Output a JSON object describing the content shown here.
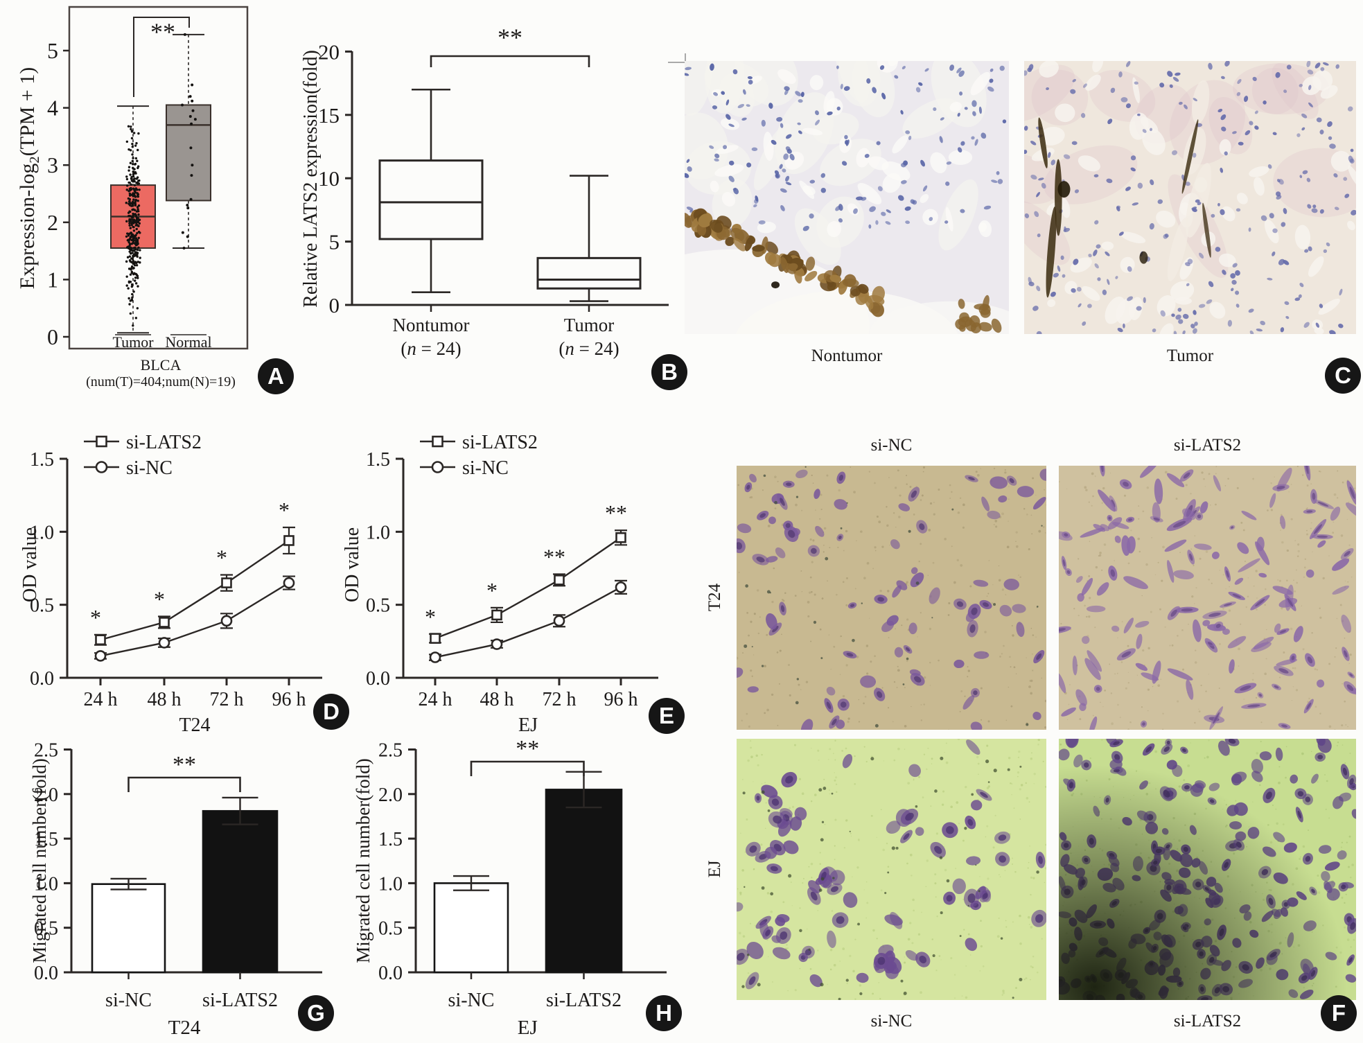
{
  "badges": {
    "a": "A",
    "b": "B",
    "c": "C",
    "d": "D",
    "e": "E",
    "f": "F",
    "g": "G",
    "h": "H"
  },
  "chart_data": {
    "A": {
      "type": "box-scatter",
      "ylabel": "Expression-log2(TPM + 1)",
      "ylabel_parts": {
        "prefix": "Expression-log",
        "sub": "2",
        "suffix": "(TPM + 1)"
      },
      "yticks": [
        0,
        1,
        2,
        3,
        4,
        5
      ],
      "ylim": [
        0,
        5.6
      ],
      "categories": [
        "Tumor",
        "Normal"
      ],
      "significance": "**",
      "xlabel_lines": [
        "BLCA",
        "(num(T)=404;num(N)=19)"
      ],
      "box_colors": [
        "#ec6a62",
        "#9a9591"
      ],
      "boxes": [
        {
          "name": "Tumor",
          "fill": "#ec6a62",
          "min": 0.07,
          "q1": 1.55,
          "median": 2.1,
          "q3": 2.65,
          "max": 4.03,
          "n_points": 330
        },
        {
          "name": "Normal",
          "fill": "#9a9591",
          "min": 1.55,
          "q1": 2.38,
          "median": 3.7,
          "q3": 4.05,
          "max": 5.28,
          "points": [
            5.28,
            4.4,
            4.2,
            4.12,
            4.05,
            3.95,
            3.85,
            3.8,
            3.72,
            3.3,
            3.0,
            2.82,
            2.4,
            2.3,
            2.25,
            1.82,
            1.75,
            1.55
          ]
        }
      ]
    },
    "B": {
      "type": "box",
      "ylabel": "Relative LATS2 expression(fold)",
      "yticks": [
        0,
        5,
        10,
        15,
        20
      ],
      "ylim": [
        0,
        20
      ],
      "significance": "**",
      "categories": [
        {
          "label": "Nontumor",
          "sub": "(n = 24)"
        },
        {
          "label": "Tumor",
          "sub": "(n = 24)"
        }
      ],
      "boxes": [
        {
          "name": "Nontumor",
          "min": 1.0,
          "q1": 5.2,
          "median": 8.1,
          "q3": 11.4,
          "max": 17.0
        },
        {
          "name": "Tumor",
          "min": 0.3,
          "q1": 1.3,
          "median": 2.0,
          "q3": 3.7,
          "max": 10.2
        }
      ]
    },
    "D": {
      "type": "line",
      "ylabel": "OD value",
      "xlabel": "T24",
      "yticks": [
        "0.0",
        "0.5",
        "1.0",
        "1.5"
      ],
      "ylim": [
        0,
        1.5
      ],
      "x_categories": [
        "24 h",
        "48 h",
        "72 h",
        "96 h"
      ],
      "series": [
        {
          "name": "si-LATS2",
          "marker": "square",
          "values": [
            0.26,
            0.38,
            0.65,
            0.94
          ],
          "errors": [
            0.035,
            0.04,
            0.055,
            0.09
          ]
        },
        {
          "name": "si-NC",
          "marker": "circle",
          "values": [
            0.15,
            0.24,
            0.39,
            0.65
          ],
          "errors": [
            0.02,
            0.03,
            0.05,
            0.045
          ]
        }
      ],
      "stars": [
        "*",
        "*",
        "*",
        "*"
      ]
    },
    "E": {
      "type": "line",
      "ylabel": "OD value",
      "xlabel": "EJ",
      "yticks": [
        "0.0",
        "0.5",
        "1.0",
        "1.5"
      ],
      "ylim": [
        0,
        1.5
      ],
      "x_categories": [
        "24 h",
        "48 h",
        "72 h",
        "96 h"
      ],
      "series": [
        {
          "name": "si-LATS2",
          "marker": "square",
          "values": [
            0.27,
            0.43,
            0.67,
            0.96
          ],
          "errors": [
            0.03,
            0.05,
            0.04,
            0.05
          ]
        },
        {
          "name": "si-NC",
          "marker": "circle",
          "values": [
            0.14,
            0.23,
            0.39,
            0.62
          ],
          "errors": [
            0.02,
            0.025,
            0.04,
            0.045
          ]
        }
      ],
      "stars": [
        "*",
        "*",
        "**",
        "**"
      ]
    },
    "G": {
      "type": "bar",
      "ylabel": "Migrated cell number(fold)",
      "xlabel": "T24",
      "yticks": [
        "0.0",
        "0.5",
        "1.0",
        "1.5",
        "2.0",
        "2.5"
      ],
      "ylim": [
        0,
        2.5
      ],
      "categories": [
        "si-NC",
        "si-LATS2"
      ],
      "values": [
        0.99,
        1.81
      ],
      "errors": [
        0.06,
        0.15
      ],
      "bar_fills": [
        "#ffffff",
        "#121212"
      ],
      "significance": "**"
    },
    "H": {
      "type": "bar",
      "ylabel": "Migrated cell number(fold)",
      "xlabel": "EJ",
      "yticks": [
        "0.0",
        "0.5",
        "1.0",
        "1.5",
        "2.0",
        "2.5"
      ],
      "ylim": [
        0,
        2.5
      ],
      "categories": [
        "si-NC",
        "si-LATS2"
      ],
      "values": [
        1.0,
        2.05
      ],
      "errors": [
        0.08,
        0.2
      ],
      "bar_fills": [
        "#ffffff",
        "#121212"
      ],
      "significance": "**"
    }
  },
  "micrographs": {
    "c_left_label": "Nontumor",
    "c_right_label": "Tumor",
    "f_col_labels": [
      "si-NC",
      "si-LATS2"
    ],
    "f_row_labels": [
      "T24",
      "EJ"
    ],
    "f_bottom_labels": [
      "si-NC",
      "si-LATS2"
    ],
    "palettes": {
      "ihc_nontumor": {
        "base": "#ece9ee",
        "base2": "#f5f3ef",
        "nuclei": "#5c68a8",
        "stain": "#8a6630",
        "stain_dark": "#6b4b1e",
        "white": "#f9f8f5"
      },
      "ihc_tumor": {
        "base": "#efe7dd",
        "nuclei": "#666cab",
        "pink": "#dfc3c9",
        "streak": "#3a2a0e",
        "vacuole": "#f7f3ee"
      },
      "t24_nc": {
        "base": "#c8b991",
        "noise": "#a3956f",
        "cell": "#7a589c",
        "cell_dark": "#563d74"
      },
      "t24_lats2": {
        "base": "#cfc19f",
        "noise": "#b0a27c",
        "cell": "#8a68a8",
        "cell_dark": "#6b4d8a"
      },
      "ej_nc": {
        "base": "#d5e5a0",
        "noise": "#b5cb7c",
        "cell": "#6b4b91",
        "cell_dark": "#4e3472"
      },
      "ej_lats2": {
        "base": "#c7dd91",
        "noise": "#a9c273",
        "cell": "#5f4488",
        "cell_dark": "#443061",
        "shadow": "#151a0c"
      }
    }
  }
}
